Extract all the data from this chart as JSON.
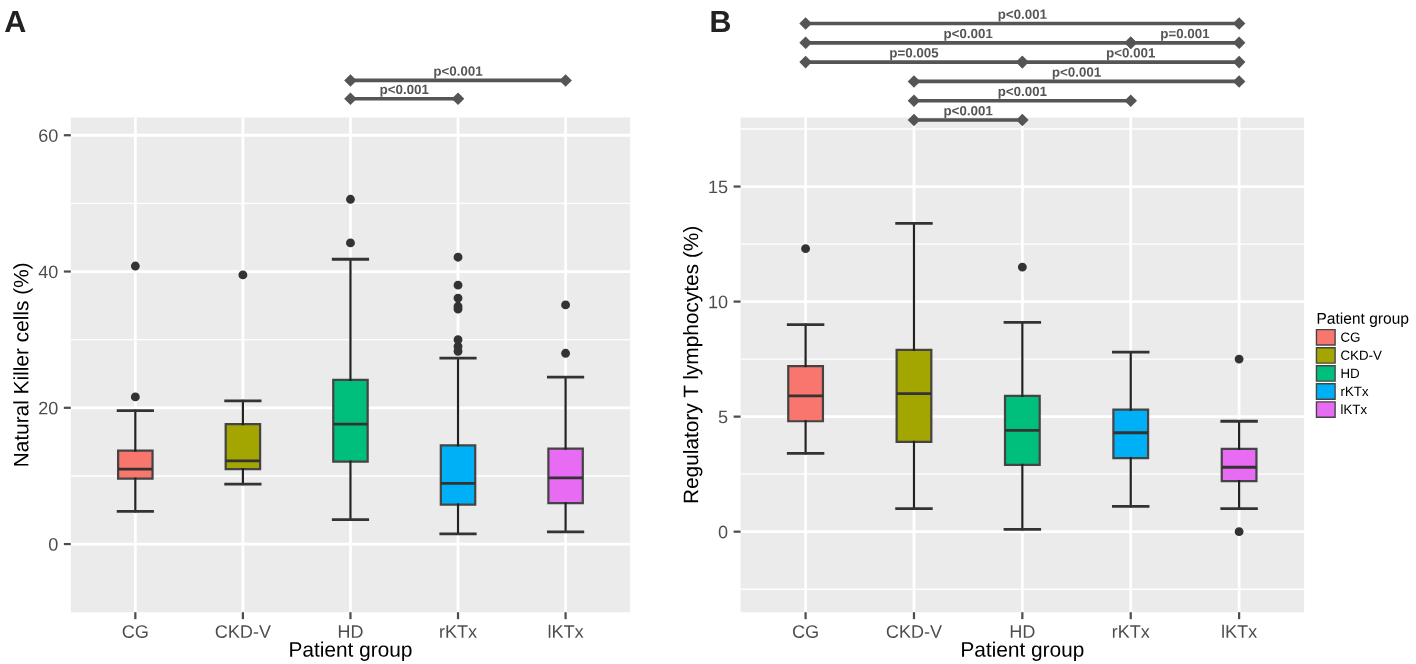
{
  "chart_data": [
    {
      "type": "box",
      "title": "A",
      "xlabel": "Patient group",
      "ylabel": "Natural Killer cells (%)",
      "categories": [
        "CG",
        "CKD-V",
        "HD",
        "rKTx",
        "lKTx"
      ],
      "series": [
        {
          "color": "#f8766d",
          "boxes": [
            {
              "low": 4.8,
              "q1": 9.6,
              "median": 11.0,
              "q3": 13.7,
              "high": 19.6,
              "outliers": [
                21.6,
                40.8
              ]
            },
            null,
            null,
            null,
            null
          ]
        },
        {
          "color": "#a3a500",
          "boxes": [
            null,
            {
              "low": 8.8,
              "q1": 11.0,
              "median": 12.2,
              "q3": 17.6,
              "high": 21.0,
              "outliers": [
                39.5
              ]
            },
            null,
            null,
            null
          ]
        },
        {
          "color": "#00bf7d",
          "boxes": [
            null,
            null,
            {
              "low": 3.6,
              "q1": 12.1,
              "median": 17.6,
              "q3": 24.1,
              "high": 41.8,
              "outliers": [
                44.2,
                50.6
              ]
            },
            null,
            null
          ]
        },
        {
          "color": "#00b0f6",
          "boxes": [
            null,
            null,
            null,
            {
              "low": 1.5,
              "q1": 5.8,
              "median": 8.9,
              "q3": 14.5,
              "high": 27.3,
              "outliers": [
                28.3,
                29.0,
                30.0,
                34.5,
                34.9,
                36.1,
                38.0,
                42.1
              ]
            },
            null
          ]
        },
        {
          "color": "#e76bf3",
          "boxes": [
            null,
            null,
            null,
            null,
            {
              "low": 1.8,
              "q1": 6.0,
              "median": 9.7,
              "q3": 14.0,
              "high": 24.5,
              "outliers": [
                28.0,
                35.1
              ]
            }
          ]
        }
      ],
      "ylim": [
        -10,
        62.6
      ],
      "yticks": [
        0,
        20,
        40,
        60
      ],
      "grid": true,
      "legend": false,
      "annotations": [
        "p<0.001",
        "p<0.001"
      ]
    },
    {
      "type": "box",
      "title": "B",
      "xlabel": "Patient group",
      "ylabel": "Regulatory T lymphocytes (%)",
      "categories": [
        "CG",
        "CKD-V",
        "HD",
        "rKTx",
        "lKTx"
      ],
      "series": [
        {
          "name": "CG",
          "color": "#f8766d",
          "boxes": [
            {
              "low": 3.4,
              "q1": 4.8,
              "median": 5.9,
              "q3": 7.2,
              "high": 9.0,
              "outliers": [
                12.3
              ]
            },
            null,
            null,
            null,
            null
          ]
        },
        {
          "name": "CKD-V",
          "color": "#a3a500",
          "boxes": [
            null,
            {
              "low": 1.0,
              "q1": 3.9,
              "median": 6.0,
              "q3": 7.9,
              "high": 13.4
            },
            null,
            null,
            null
          ]
        },
        {
          "name": "HD",
          "color": "#00bf7d",
          "boxes": [
            null,
            null,
            {
              "low": 0.1,
              "q1": 2.9,
              "median": 4.4,
              "q3": 5.9,
              "high": 9.1,
              "outliers": [
                11.5
              ]
            },
            null,
            null
          ]
        },
        {
          "name": "rKTx",
          "color": "#00b0f6",
          "boxes": [
            null,
            null,
            null,
            {
              "low": 1.1,
              "q1": 3.2,
              "median": 4.3,
              "q3": 5.3,
              "high": 7.8
            },
            null
          ]
        },
        {
          "name": "lKTx",
          "color": "#e76bf3",
          "boxes": [
            null,
            null,
            null,
            null,
            {
              "low": 1.0,
              "q1": 2.2,
              "median": 2.8,
              "q3": 3.6,
              "high": 4.8,
              "outliers": [
                0.0,
                7.5
              ]
            }
          ]
        }
      ],
      "ylim": [
        -3.5,
        18.0
      ],
      "yticks": [
        0,
        5,
        10,
        15
      ],
      "grid": true,
      "legend": "right",
      "legend_title": "Patient group",
      "annotations": [
        "p<0.001",
        "p<0.001",
        "p=0.001",
        "p=0.005",
        "p<0.001",
        "p<0.001",
        "p<0.001",
        "p<0.001"
      ]
    }
  ]
}
